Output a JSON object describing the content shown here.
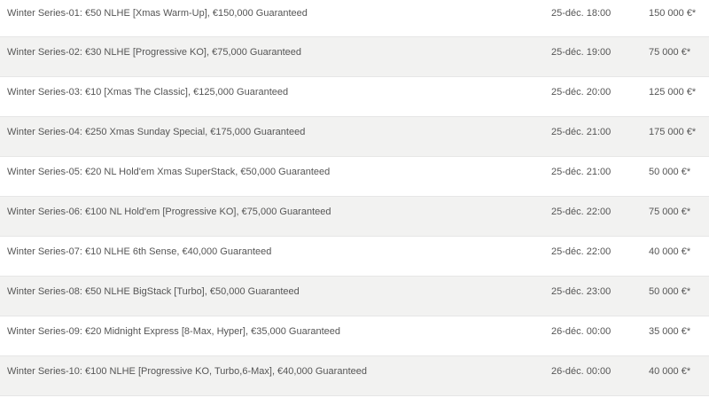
{
  "tournaments": [
    {
      "name": "Winter Series-01: €50 NLHE [Xmas Warm-Up], €150,000 Guaranteed",
      "date": "25-déc. 18:00",
      "prize": "150 000 €*"
    },
    {
      "name": "Winter Series-02: €30 NLHE [Progressive KO], €75,000 Guaranteed",
      "date": "25-déc. 19:00",
      "prize": "75 000 €*"
    },
    {
      "name": "Winter Series-03: €10 [Xmas The Classic], €125,000 Guaranteed",
      "date": "25-déc. 20:00",
      "prize": "125 000 €*"
    },
    {
      "name": "Winter Series-04: €250 Xmas Sunday Special, €175,000 Guaranteed",
      "date": "25-déc. 21:00",
      "prize": "175 000 €*"
    },
    {
      "name": "Winter Series-05: €20 NL Hold'em Xmas SuperStack, €50,000 Guaranteed",
      "date": "25-déc. 21:00",
      "prize": "50 000 €*"
    },
    {
      "name": "Winter Series-06: €100 NL Hold'em [Progressive KO], €75,000 Guaranteed",
      "date": "25-déc. 22:00",
      "prize": "75 000 €*"
    },
    {
      "name": "Winter Series-07: €10 NLHE 6th Sense, €40,000 Guaranteed",
      "date": "25-déc. 22:00",
      "prize": "40 000 €*"
    },
    {
      "name": "Winter Series-08: €50 NLHE BigStack [Turbo], €50,000 Guaranteed",
      "date": "25-déc. 23:00",
      "prize": "50 000 €*"
    },
    {
      "name": "Winter Series-09: €20 Midnight Express [8-Max, Hyper], €35,000 Guaranteed",
      "date": "26-déc. 00:00",
      "prize": "35 000 €*"
    },
    {
      "name": "Winter Series-10: €100 NLHE [Progressive KO, Turbo,6-Max], €40,000 Guaranteed",
      "date": "26-déc. 00:00",
      "prize": "40 000 €*"
    }
  ]
}
